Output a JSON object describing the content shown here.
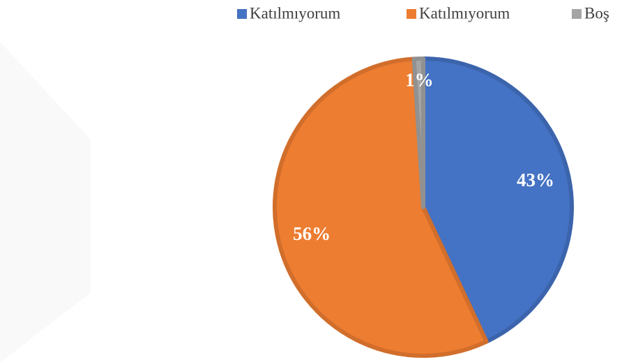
{
  "chart_data": {
    "type": "pie",
    "categories": [
      "Katılmıyorum",
      "Katılmıyorum",
      "Boş"
    ],
    "values": [
      43,
      56,
      1
    ],
    "value_labels": [
      "43%",
      "56%",
      "1%"
    ],
    "colors": [
      "#4472c4",
      "#ed7d31",
      "#a5a5a5"
    ],
    "legend": "top"
  }
}
